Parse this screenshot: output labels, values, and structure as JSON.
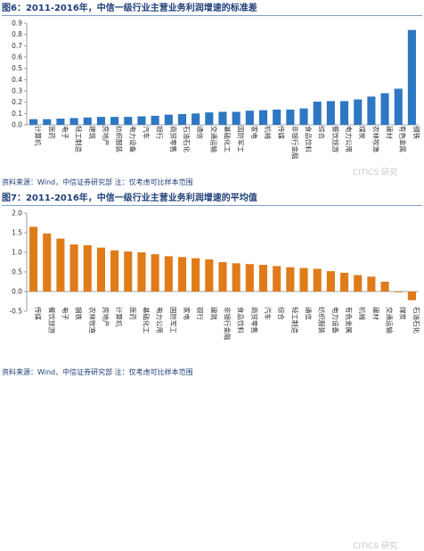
{
  "chart_data": [
    {
      "type": "bar",
      "title": "图6：2011-2016年，中信一级行业主营业务利润增速的标准差",
      "source": "资料来源：Wind，中信证券研究部    注：仅考虑可比样本范围",
      "watermark": "CITICS 研究",
      "color": "#2e77c2",
      "ylim": [
        0,
        0.9
      ],
      "yticks": [
        0,
        0.1,
        0.2,
        0.3,
        0.4,
        0.5,
        0.6,
        0.7,
        0.8,
        0.9
      ],
      "categories": [
        "计算机",
        "医药",
        "电子",
        "轻工制造",
        "建筑",
        "房地产",
        "纺织服装",
        "电力设备",
        "汽车",
        "银行",
        "商贸零售",
        "石油石化",
        "通信",
        "交通运输",
        "基础化工",
        "国防军工",
        "家电",
        "机械",
        "传媒",
        "非银行金融",
        "食品饮料",
        "综合",
        "餐饮旅游",
        "电力公用",
        "煤炭",
        "农林牧渔",
        "建材",
        "有色金属",
        "钢铁"
      ],
      "values": [
        0.05,
        0.05,
        0.055,
        0.06,
        0.065,
        0.07,
        0.07,
        0.07,
        0.075,
        0.08,
        0.09,
        0.095,
        0.1,
        0.11,
        0.115,
        0.115,
        0.125,
        0.13,
        0.135,
        0.135,
        0.145,
        0.205,
        0.21,
        0.21,
        0.225,
        0.25,
        0.28,
        0.32,
        0.84
      ]
    },
    {
      "type": "bar",
      "title": "图7：2011-2016年，中信一级行业主营业务利润增速的平均值",
      "source": "资料来源：Wind，中信证券研究部    注：仅考虑可比样本范围",
      "watermark": "CITICS 研究",
      "color": "#e07b1a",
      "ylim": [
        -0.5,
        2
      ],
      "yticks": [
        -0.5,
        0,
        0.5,
        1,
        1.5,
        2
      ],
      "categories": [
        "传媒",
        "餐饮旅游",
        "电子",
        "钢铁",
        "农林牧渔",
        "房地产",
        "计算机",
        "医药",
        "基础化工",
        "电力公用",
        "国防军工",
        "家电",
        "银行",
        "建筑",
        "非银行金融",
        "食品饮料",
        "商贸零售",
        "汽车",
        "综合",
        "轻工制造",
        "通信",
        "纺织服装",
        "电力设备",
        "有色金属",
        "机械",
        "建材",
        "交通运输",
        "煤炭",
        "石油石化"
      ],
      "values": [
        1.65,
        1.48,
        1.35,
        1.2,
        1.18,
        1.12,
        1.05,
        1.02,
        1.0,
        0.95,
        0.9,
        0.88,
        0.85,
        0.82,
        0.75,
        0.72,
        0.7,
        0.68,
        0.65,
        0.62,
        0.6,
        0.58,
        0.52,
        0.48,
        0.42,
        0.38,
        0.25,
        -0.02,
        -0.22
      ]
    }
  ]
}
